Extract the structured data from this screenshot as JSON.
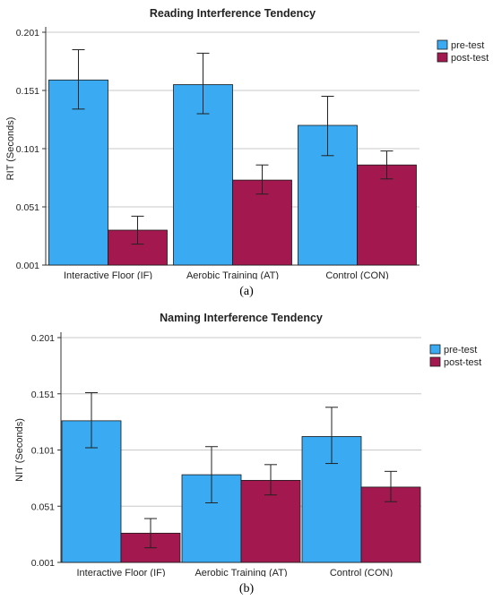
{
  "chart_data": [
    {
      "type": "bar",
      "title": "Reading Interference Tendency",
      "ylabel": "RIT (Seconds)",
      "xlabel": "",
      "ylim": [
        0.001,
        0.201
      ],
      "yticks": [
        "0.001",
        "0.051",
        "0.101",
        "0.151",
        "0.201"
      ],
      "categories": [
        "Interactive Floor (IF)",
        "Aerobic Training (AT)",
        "Control (CON)"
      ],
      "series": [
        {
          "name": "pre-test",
          "color": "#3aabf2",
          "values": [
            0.16,
            0.156,
            0.121
          ],
          "err_low": [
            0.135,
            0.131,
            0.095
          ],
          "err_high": [
            0.186,
            0.183,
            0.146
          ]
        },
        {
          "name": "post-test",
          "color": "#a3194f",
          "values": [
            0.031,
            0.074,
            0.087
          ],
          "err_low": [
            0.019,
            0.062,
            0.075
          ],
          "err_high": [
            0.043,
            0.087,
            0.099
          ]
        }
      ],
      "legend": "top-right",
      "grid": true,
      "caption": "(a)"
    },
    {
      "type": "bar",
      "title": "Naming Interference Tendency",
      "ylabel": "NIT (Seconds)",
      "xlabel": "",
      "ylim": [
        0.001,
        0.201
      ],
      "yticks": [
        "0.001",
        "0.051",
        "0.101",
        "0.151",
        "0.201"
      ],
      "categories": [
        "Interactive Floor (IF)",
        "Aerobic Training (AT)",
        "Control (CON)"
      ],
      "series": [
        {
          "name": "pre-test",
          "color": "#3aabf2",
          "values": [
            0.127,
            0.079,
            0.113
          ],
          "err_low": [
            0.103,
            0.054,
            0.089
          ],
          "err_high": [
            0.152,
            0.104,
            0.139
          ]
        },
        {
          "name": "post-test",
          "color": "#a3194f",
          "values": [
            0.027,
            0.074,
            0.068
          ],
          "err_low": [
            0.014,
            0.061,
            0.055
          ],
          "err_high": [
            0.04,
            0.088,
            0.082
          ]
        }
      ],
      "legend": "top-right",
      "grid": true,
      "caption": "(b)"
    }
  ]
}
